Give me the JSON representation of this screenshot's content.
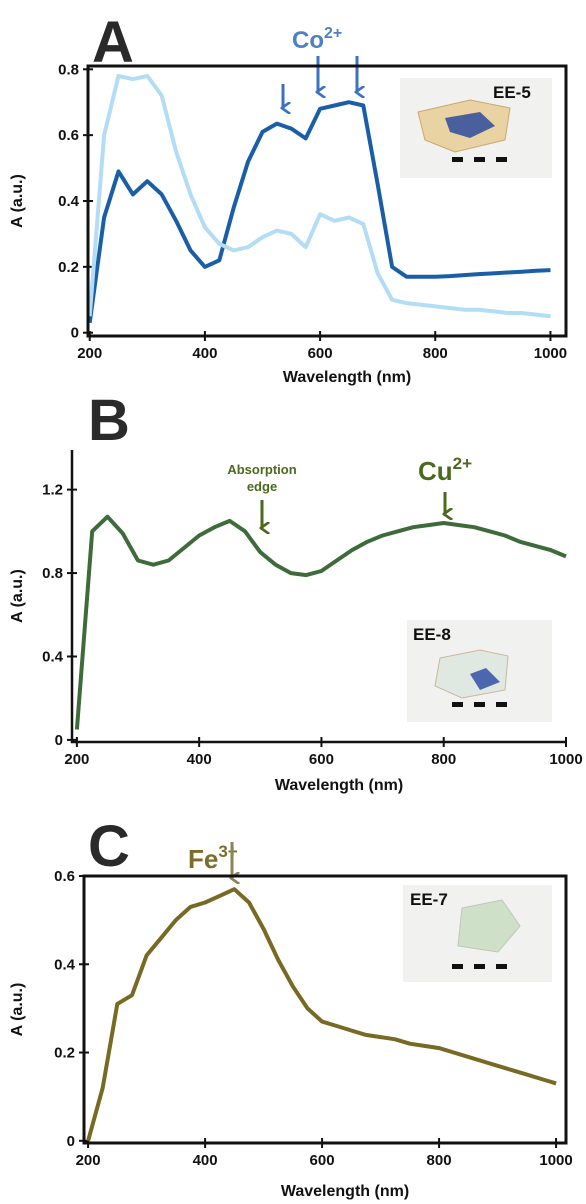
{
  "chart_data": [
    {
      "type": "line",
      "panel": "A",
      "annotation": {
        "text": "Co",
        "sup": "2+"
      },
      "sample": "EE-5",
      "x_label": "Wavelength (nm)",
      "y_label": "A (a.u.)",
      "box": true,
      "x": [
        200,
        225,
        250,
        275,
        300,
        325,
        350,
        375,
        400,
        425,
        450,
        475,
        500,
        525,
        550,
        575,
        600,
        625,
        650,
        675,
        700,
        725,
        750,
        775,
        800,
        825,
        850,
        875,
        900,
        925,
        950,
        975,
        1000
      ],
      "xlim": [
        197,
        1027
      ],
      "ylim": [
        -0.01,
        0.81
      ],
      "xticks": [
        200,
        400,
        600,
        800,
        1000
      ],
      "yticks": [
        0,
        0.2,
        0.4,
        0.6,
        0.8
      ],
      "series": [
        {
          "color": "#1a5ea8",
          "values": [
            0.03,
            0.35,
            0.49,
            0.42,
            0.46,
            0.42,
            0.34,
            0.25,
            0.2,
            0.22,
            0.38,
            0.52,
            0.61,
            0.635,
            0.62,
            0.59,
            0.68,
            0.69,
            0.7,
            0.69,
            0.45,
            0.2,
            0.17,
            0.17,
            0.17,
            0.172,
            0.175,
            0.178,
            0.18,
            0.183,
            0.185,
            0.188,
            0.19
          ]
        },
        {
          "color": "#b3dcf5",
          "values": [
            0.05,
            0.6,
            0.78,
            0.77,
            0.78,
            0.72,
            0.55,
            0.42,
            0.32,
            0.27,
            0.25,
            0.26,
            0.29,
            0.31,
            0.3,
            0.26,
            0.36,
            0.34,
            0.35,
            0.33,
            0.18,
            0.1,
            0.09,
            0.085,
            0.08,
            0.075,
            0.07,
            0.07,
            0.065,
            0.06,
            0.06,
            0.055,
            0.05
          ]
        }
      ]
    },
    {
      "type": "line",
      "panel": "B",
      "annotation": {
        "text": "Cu",
        "sup": "2+"
      },
      "note": [
        "Absorption",
        "edge"
      ],
      "sample": "EE-8",
      "x_label": "Wavelength (nm)",
      "y_label": "A (a.u.)",
      "box": false,
      "x": [
        200,
        225,
        250,
        275,
        300,
        325,
        350,
        375,
        400,
        425,
        450,
        475,
        500,
        525,
        550,
        575,
        600,
        625,
        650,
        675,
        700,
        725,
        750,
        775,
        800,
        825,
        850,
        875,
        900,
        925,
        950,
        975,
        1000
      ],
      "xlim": [
        192,
        1000
      ],
      "ylim": [
        -0.01,
        1.39
      ],
      "xticks": [
        200,
        400,
        600,
        800,
        1000
      ],
      "yticks": [
        0,
        0.4,
        0.8,
        1.2
      ],
      "series": [
        {
          "color": "#3e6b3a",
          "values": [
            0.05,
            1.0,
            1.07,
            0.99,
            0.86,
            0.84,
            0.86,
            0.92,
            0.98,
            1.02,
            1.05,
            1.0,
            0.9,
            0.84,
            0.8,
            0.79,
            0.81,
            0.86,
            0.91,
            0.95,
            0.98,
            1.0,
            1.02,
            1.03,
            1.04,
            1.03,
            1.02,
            1.0,
            0.98,
            0.95,
            0.93,
            0.91,
            0.88
          ]
        }
      ]
    },
    {
      "type": "line",
      "panel": "C",
      "annotation": {
        "text": "Fe",
        "sup": "3+"
      },
      "sample": "EE-7",
      "x_label": "Wavelength (nm)",
      "y_label": "A (a.u.)",
      "box": true,
      "x": [
        200,
        225,
        250,
        275,
        300,
        325,
        350,
        375,
        400,
        425,
        450,
        475,
        500,
        525,
        550,
        575,
        600,
        625,
        650,
        675,
        700,
        725,
        750,
        775,
        800,
        825,
        850,
        875,
        900,
        925,
        950,
        975,
        1000
      ],
      "xlim": [
        193,
        1017
      ],
      "ylim": [
        -0.005,
        0.6
      ],
      "xticks": [
        200,
        400,
        600,
        800,
        1000
      ],
      "yticks": [
        0,
        0.2,
        0.4,
        0.6
      ],
      "series": [
        {
          "color": "#786a24",
          "values": [
            0.0,
            0.12,
            0.31,
            0.33,
            0.42,
            0.46,
            0.5,
            0.53,
            0.54,
            0.555,
            0.57,
            0.54,
            0.48,
            0.41,
            0.35,
            0.3,
            0.27,
            0.26,
            0.25,
            0.24,
            0.235,
            0.23,
            0.22,
            0.215,
            0.21,
            0.2,
            0.19,
            0.18,
            0.17,
            0.16,
            0.15,
            0.14,
            0.13
          ]
        }
      ]
    }
  ]
}
